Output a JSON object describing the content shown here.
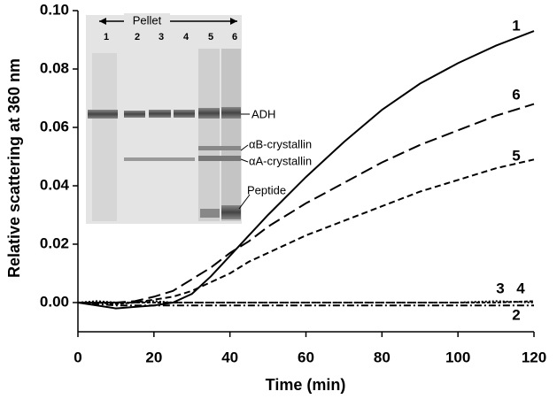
{
  "chart_data": {
    "type": "line",
    "x_label": "Time (min)",
    "y_label": "Relative scattering at 360 nm",
    "x": [
      0,
      5,
      10,
      15,
      20,
      25,
      30,
      35,
      40,
      45,
      50,
      60,
      70,
      80,
      90,
      100,
      110,
      120
    ],
    "series": [
      {
        "name": "1",
        "color": "#000000",
        "dash": "none",
        "values": [
          0,
          -0.001,
          -0.002,
          -0.0015,
          -0.001,
          0,
          0.003,
          0.009,
          0.016,
          0.023,
          0.03,
          0.043,
          0.055,
          0.066,
          0.075,
          0.082,
          0.088,
          0.093
        ]
      },
      {
        "name": "6",
        "color": "#000000",
        "dash": "14,6",
        "values": [
          0,
          0,
          0,
          0.0005,
          0.002,
          0.004,
          0.008,
          0.012,
          0.017,
          0.021,
          0.026,
          0.034,
          0.041,
          0.048,
          0.054,
          0.059,
          0.064,
          0.068
        ]
      },
      {
        "name": "5",
        "color": "#000000",
        "dash": "7,4",
        "values": [
          0,
          0,
          0,
          0,
          0.001,
          0.002,
          0.004,
          0.007,
          0.01,
          0.014,
          0.017,
          0.023,
          0.028,
          0.033,
          0.038,
          0.042,
          0.046,
          0.049
        ]
      },
      {
        "name": "3",
        "color": "#000000",
        "dash": "4,2",
        "values": [
          0,
          0,
          -0.0005,
          0,
          0,
          0,
          0,
          0,
          0,
          0,
          0,
          0,
          0,
          0,
          0,
          0,
          0,
          0.0005
        ]
      },
      {
        "name": "4",
        "color": "#000000",
        "dash": "2,2",
        "values": [
          0,
          0.0005,
          0,
          0,
          0.0005,
          0,
          0,
          0,
          0,
          0,
          0,
          0,
          0,
          0,
          0,
          0,
          0.0005,
          0
        ]
      },
      {
        "name": "2",
        "color": "#000000",
        "dash": "8,3,2,3",
        "values": [
          0,
          -0.0005,
          -0.001,
          -0.001,
          -0.001,
          -0.001,
          -0.001,
          -0.001,
          -0.001,
          -0.001,
          -0.001,
          -0.001,
          -0.001,
          -0.001,
          -0.001,
          -0.001,
          -0.001,
          -0.001
        ]
      }
    ],
    "xlim": [
      0,
      120
    ],
    "xticks": [
      0,
      20,
      40,
      60,
      80,
      100,
      120
    ],
    "ylim": [
      -0.01,
      0.1
    ],
    "yticks": [
      {
        "value": 0,
        "label": "0.00"
      },
      {
        "value": 0.02,
        "label": "0.02"
      },
      {
        "value": 0.04,
        "label": "0.04"
      },
      {
        "value": 0.06,
        "label": "0.06"
      },
      {
        "value": 0.08,
        "label": "0.08"
      },
      {
        "value": 0.1,
        "label": "0.10"
      }
    ],
    "grid": false,
    "inset": {
      "title": "Pellet",
      "lanes": [
        "1",
        "2",
        "3",
        "4",
        "5",
        "6"
      ],
      "band_labels": [
        "ADH",
        "αB-crystallin",
        "αA-crystallin",
        "Peptide"
      ]
    }
  }
}
